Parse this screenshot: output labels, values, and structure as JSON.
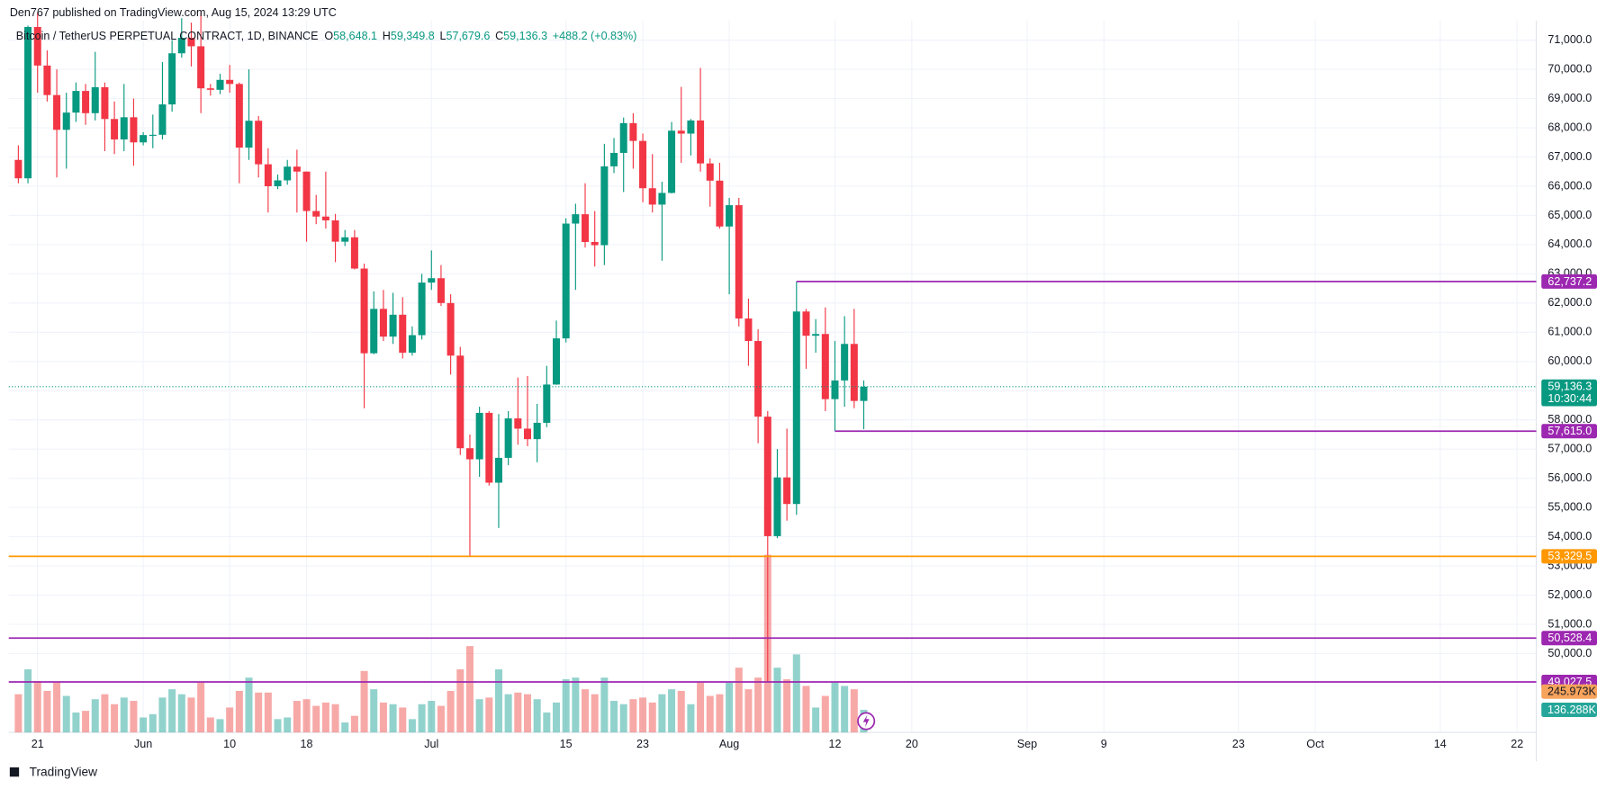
{
  "header": {
    "publisher": "Den767 published on TradingView.com, Aug 15, 2024 13:29 UTC",
    "footer": "TradingView"
  },
  "chart_data": {
    "type": "candlestick",
    "symbol": "Bitcoin / TetherUS PERPETUAL CONTRACT, 1D, BINANCE",
    "legend": [
      {
        "key": "O",
        "value": "58,648.1"
      },
      {
        "key": "H",
        "value": "59,349.8"
      },
      {
        "key": "L",
        "value": "57,679.6"
      },
      {
        "key": "C",
        "value": "59,136.3"
      }
    ],
    "change": "+488.2 (+0.83%)",
    "up_color": "#089981",
    "down_color": "#f23645",
    "x": [
      "2024-05-19",
      "2024-05-20",
      "2024-05-21",
      "2024-05-22",
      "2024-05-23",
      "2024-05-24",
      "2024-05-25",
      "2024-05-26",
      "2024-05-27",
      "2024-05-28",
      "2024-05-29",
      "2024-05-30",
      "2024-05-31",
      "2024-06-01",
      "2024-06-02",
      "2024-06-03",
      "2024-06-04",
      "2024-06-05",
      "2024-06-06",
      "2024-06-07",
      "2024-06-08",
      "2024-06-09",
      "2024-06-10",
      "2024-06-11",
      "2024-06-12",
      "2024-06-13",
      "2024-06-14",
      "2024-06-15",
      "2024-06-16",
      "2024-06-17",
      "2024-06-18",
      "2024-06-19",
      "2024-06-20",
      "2024-06-21",
      "2024-06-22",
      "2024-06-23",
      "2024-06-24",
      "2024-06-25",
      "2024-06-26",
      "2024-06-27",
      "2024-06-28",
      "2024-06-29",
      "2024-06-30",
      "2024-07-01",
      "2024-07-02",
      "2024-07-03",
      "2024-07-04",
      "2024-07-05",
      "2024-07-06",
      "2024-07-07",
      "2024-07-08",
      "2024-07-09",
      "2024-07-10",
      "2024-07-11",
      "2024-07-12",
      "2024-07-13",
      "2024-07-14",
      "2024-07-15",
      "2024-07-16",
      "2024-07-17",
      "2024-07-18",
      "2024-07-19",
      "2024-07-20",
      "2024-07-21",
      "2024-07-22",
      "2024-07-23",
      "2024-07-24",
      "2024-07-25",
      "2024-07-26",
      "2024-07-27",
      "2024-07-28",
      "2024-07-29",
      "2024-07-30",
      "2024-07-31",
      "2024-08-01",
      "2024-08-02",
      "2024-08-03",
      "2024-08-04",
      "2024-08-05",
      "2024-08-06",
      "2024-08-07",
      "2024-08-08",
      "2024-08-09",
      "2024-08-10",
      "2024-08-11",
      "2024-08-12",
      "2024-08-13",
      "2024-08-14",
      "2024-08-15"
    ],
    "open": [
      66900,
      66270,
      71450,
      70130,
      69120,
      67930,
      68520,
      69260,
      68500,
      69390,
      68300,
      67600,
      68360,
      67500,
      67750,
      67760,
      68800,
      70550,
      71080,
      70790,
      69350,
      69300,
      69640,
      69500,
      67320,
      68240,
      66750,
      66000,
      66200,
      66670,
      66500,
      65150,
      64960,
      64830,
      64100,
      64250,
      63180,
      60280,
      61800,
      60850,
      61600,
      60300,
      60900,
      62700,
      62850,
      62000,
      60200,
      57030,
      56650,
      58240,
      55850,
      56700,
      58050,
      57700,
      57340,
      57900,
      59210,
      60790,
      64720,
      65040,
      64090,
      63980,
      66680,
      67140,
      68160,
      67550,
      65930,
      65370,
      65770,
      67900,
      67800,
      68250,
      66780,
      66190,
      64620,
      65350,
      61470,
      60700,
      58110,
      54020,
      56030,
      55120,
      61710,
      60880,
      60940,
      58710,
      59350,
      60600,
      58648.1
    ],
    "high": [
      67400,
      71500,
      71950,
      70650,
      70000,
      69200,
      69550,
      69500,
      70600,
      69550,
      68900,
      69500,
      69000,
      67850,
      68450,
      70250,
      71000,
      71750,
      71600,
      71950,
      69500,
      69850,
      70150,
      69550,
      70000,
      68400,
      67300,
      66400,
      66900,
      67250,
      66500,
      65700,
      66500,
      65050,
      64500,
      64500,
      63350,
      62400,
      62450,
      62350,
      62200,
      61200,
      63000,
      63800,
      63300,
      62300,
      60500,
      57500,
      58450,
      58300,
      58200,
      58300,
      59450,
      59500,
      58550,
      59850,
      61400,
      64900,
      65400,
      66100,
      65150,
      67450,
      67650,
      68350,
      68500,
      67800,
      67100,
      66150,
      68200,
      69400,
      68300,
      70050,
      66950,
      66800,
      65600,
      65600,
      62150,
      61100,
      58300,
      57000,
      57700,
      62737.2,
      61800,
      61450,
      61850,
      60700,
      61550,
      61800,
      59349.8
    ],
    "low": [
      66100,
      66100,
      69200,
      68900,
      66300,
      66600,
      68200,
      68100,
      68250,
      67200,
      67100,
      67200,
      66700,
      67400,
      67300,
      67600,
      68550,
      70400,
      70100,
      68500,
      69100,
      69150,
      69200,
      66100,
      66900,
      66300,
      65100,
      65900,
      66050,
      65100,
      64100,
      64700,
      64550,
      63400,
      63950,
      63150,
      58400,
      60250,
      60700,
      60600,
      60100,
      60200,
      60750,
      62450,
      61900,
      59550,
      56800,
      53329.5,
      56050,
      55750,
      54300,
      56450,
      57150,
      57100,
      56550,
      57750,
      59200,
      60650,
      62450,
      63900,
      63250,
      63300,
      66450,
      65800,
      66600,
      65450,
      65100,
      63450,
      65750,
      66800,
      67050,
      66500,
      65300,
      64550,
      62300,
      61200,
      59850,
      57200,
      49027.5,
      53950,
      54550,
      54750,
      59750,
      60300,
      58300,
      57615,
      58450,
      58400,
      57679.6
    ],
    "close": [
      66270,
      71450,
      70130,
      69120,
      67930,
      68520,
      69260,
      68500,
      69390,
      68300,
      67600,
      68360,
      67500,
      67750,
      67760,
      68800,
      70550,
      71080,
      70790,
      69350,
      69300,
      69640,
      69500,
      67320,
      68240,
      66750,
      66000,
      66200,
      66670,
      66500,
      65150,
      64960,
      64830,
      64100,
      64250,
      63180,
      60280,
      61800,
      60850,
      61600,
      60300,
      60900,
      62700,
      62850,
      62000,
      60200,
      57030,
      56650,
      58240,
      55850,
      56700,
      58050,
      57700,
      57340,
      57900,
      59210,
      60790,
      64720,
      65040,
      64090,
      63980,
      66680,
      67140,
      68160,
      67550,
      65930,
      65370,
      65770,
      67900,
      67800,
      68250,
      66780,
      66190,
      64620,
      65350,
      61470,
      60700,
      58110,
      54020,
      56030,
      55120,
      61710,
      60880,
      60940,
      58710,
      59350,
      60600,
      58648.1,
      59136.3
    ],
    "volume": [
      230000,
      380000,
      310000,
      250000,
      300000,
      220000,
      120000,
      130000,
      200000,
      230000,
      170000,
      210000,
      190000,
      90000,
      110000,
      210000,
      260000,
      230000,
      210000,
      300000,
      90000,
      80000,
      150000,
      250000,
      330000,
      240000,
      240000,
      80000,
      90000,
      190000,
      200000,
      160000,
      180000,
      170000,
      60000,
      100000,
      370000,
      260000,
      180000,
      170000,
      150000,
      80000,
      170000,
      190000,
      160000,
      250000,
      380000,
      520000,
      200000,
      210000,
      380000,
      230000,
      240000,
      230000,
      200000,
      120000,
      180000,
      320000,
      330000,
      260000,
      230000,
      330000,
      190000,
      170000,
      200000,
      210000,
      180000,
      230000,
      260000,
      250000,
      170000,
      300000,
      220000,
      230000,
      300000,
      390000,
      260000,
      330000,
      1070000,
      390000,
      320000,
      470000,
      280000,
      150000,
      220000,
      300000,
      280000,
      260000,
      136288
    ],
    "xlim": [
      "2024-05-18",
      "2024-10-24"
    ],
    "xticks": [
      {
        "value": "2024-05-21",
        "label": "21"
      },
      {
        "value": "2024-06-01",
        "label": "Jun"
      },
      {
        "value": "2024-06-10",
        "label": "10"
      },
      {
        "value": "2024-06-18",
        "label": "18"
      },
      {
        "value": "2024-07-01",
        "label": "Jul"
      },
      {
        "value": "2024-07-15",
        "label": "15"
      },
      {
        "value": "2024-07-23",
        "label": "23"
      },
      {
        "value": "2024-08-01",
        "label": "Aug"
      },
      {
        "value": "2024-08-12",
        "label": "12"
      },
      {
        "value": "2024-08-20",
        "label": "20"
      },
      {
        "value": "2024-09-01",
        "label": "Sep"
      },
      {
        "value": "2024-09-09",
        "label": "9"
      },
      {
        "value": "2024-09-23",
        "label": "23"
      },
      {
        "value": "2024-10-01",
        "label": "Oct"
      },
      {
        "value": "2024-10-14",
        "label": "14"
      },
      {
        "value": "2024-10-22",
        "label": "22"
      }
    ],
    "ylim": [
      47300,
      71670
    ],
    "yticks": [
      {
        "value": 50000,
        "label": "50,000.0"
      },
      {
        "value": 51000,
        "label": "51,000.0"
      },
      {
        "value": 52000,
        "label": "52,000.0"
      },
      {
        "value": 53000,
        "label": "53,000.0"
      },
      {
        "value": 54000,
        "label": "54,000.0"
      },
      {
        "value": 55000,
        "label": "55,000.0"
      },
      {
        "value": 56000,
        "label": "56,000.0"
      },
      {
        "value": 57000,
        "label": "57,000.0"
      },
      {
        "value": 58000,
        "label": "58,000.0"
      },
      {
        "value": 59000,
        "label": "59,000.0"
      },
      {
        "value": 60000,
        "label": "60,000.0"
      },
      {
        "value": 61000,
        "label": "61,000.0"
      },
      {
        "value": 62000,
        "label": "62,000.0"
      },
      {
        "value": 63000,
        "label": "63,000.0"
      },
      {
        "value": 64000,
        "label": "64,000.0"
      },
      {
        "value": 65000,
        "label": "65,000.0"
      },
      {
        "value": 66000,
        "label": "66,000.0"
      },
      {
        "value": 67000,
        "label": "67,000.0"
      },
      {
        "value": 68000,
        "label": "68,000.0"
      },
      {
        "value": 69000,
        "label": "69,000.0"
      },
      {
        "value": 70000,
        "label": "70,000.0"
      },
      {
        "value": 71000,
        "label": "71,000.0"
      }
    ],
    "volume_ylim": [
      0,
      4287000
    ],
    "levels": [
      {
        "value": 62737.2,
        "label": "62,737.2",
        "color": "#9c27b0",
        "start": "2024-08-08"
      },
      {
        "value": 57615.0,
        "label": "57,615.0",
        "color": "#9c27b0",
        "start": "2024-08-12"
      },
      {
        "value": 53329.5,
        "label": "53,329.5",
        "color": "#ff9800"
      },
      {
        "value": 50528.4,
        "label": "50,528.4",
        "color": "#9c27b0"
      },
      {
        "value": 49027.5,
        "label": "49,027.5",
        "color": "#9c27b0"
      }
    ],
    "last_price_label": "59,136.3",
    "countdown": "10:30:44",
    "volume_ma": 245973,
    "volume_ma_label": "245.973K",
    "volume_ma_color": "#f7a35c",
    "last_volume_label": "136.288K"
  }
}
